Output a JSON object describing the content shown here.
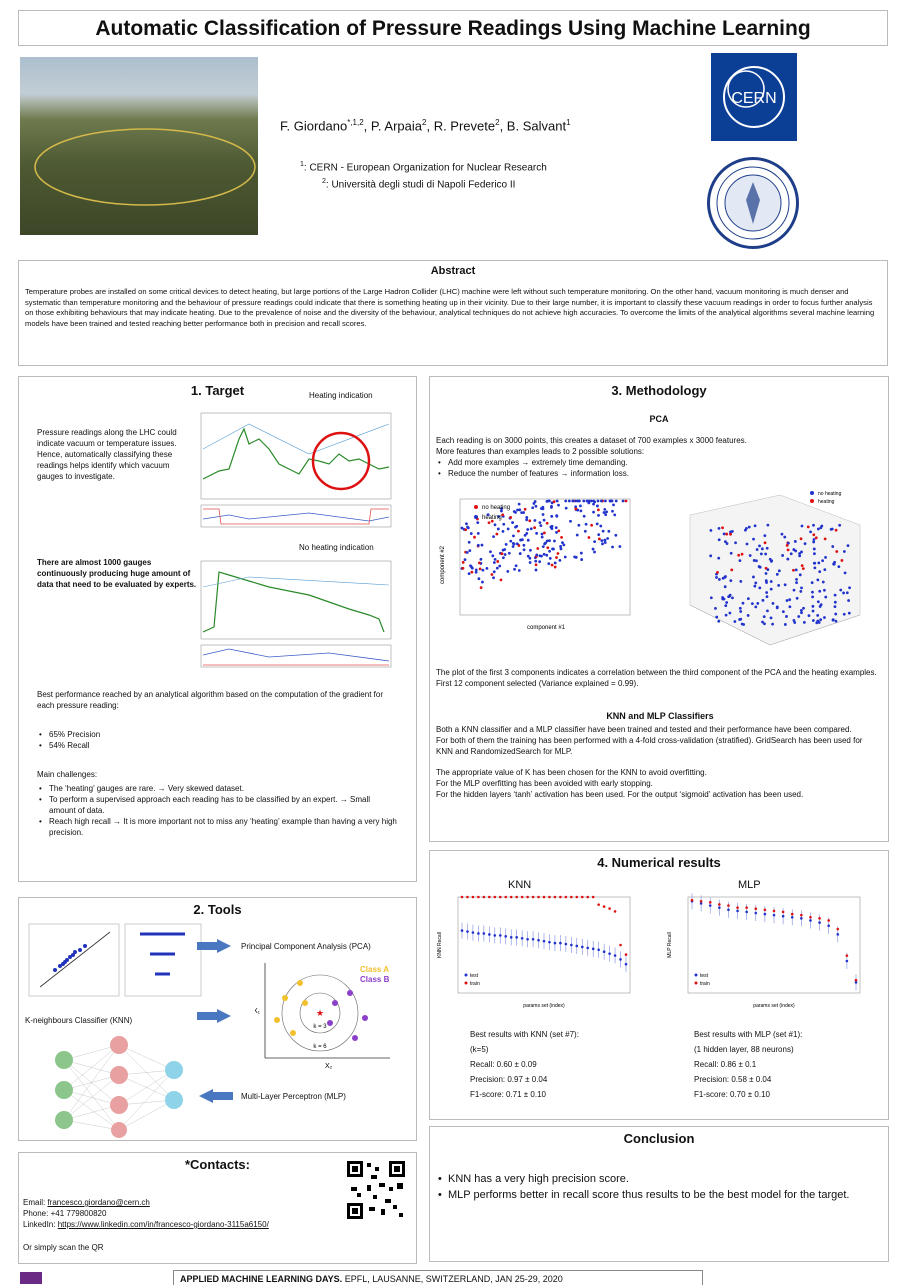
{
  "title": "Automatic Classification of Pressure Readings Using Machine Learning",
  "authors": [
    {
      "name": "F. Giordano",
      "mark": "*,1,2"
    },
    {
      "name": "P. Arpaia",
      "mark": "2"
    },
    {
      "name": "R. Prevete",
      "mark": "2"
    },
    {
      "name": "B. Salvant",
      "mark": "1"
    }
  ],
  "affiliations": [
    {
      "num": "1",
      "text": ": CERN - European Organization for Nuclear Research"
    },
    {
      "num": "2",
      "text": ": Università degli studi di Napoli Federico II"
    }
  ],
  "logo": {
    "cern": "CERN"
  },
  "abstract": {
    "title": "Abstract",
    "text": "Temperature probes are installed on some critical devices to detect heating, but large portions of the Large Hadron Collider (LHC) machine were left without such temperature monitoring. On the other hand, vacuum monitoring is much denser and systematic than temperature monitoring and the behaviour of pressure readings could indicate that there is something heating up in their vicinity. Due to their large number, it is important to classify these vacuum readings in order to focus further analysis on those exhibiting behaviours that may indicate heating. Due to the prevalence of noise and the diversity of the behaviour, analytical techniques do not achieve high accuracies. To overcome the limits of the analytical algorithms several machine learning models have been trained and tested reaching better performance both in precision and recall scores."
  },
  "target": {
    "title": "1. Target",
    "heating_label": "Heating indication",
    "no_heating_label": "No heating indication",
    "intro": "Pressure readings along the LHC could indicate vacuum or temperature issues. Hence, automatically classifying these readings helps identify which vacuum gauges to investigate.",
    "bold": "There are almost 1000 gauges continuously producing huge amount of data that need to be evaluated by experts.",
    "best": "Best performance reached by an analytical algorithm based on the computation of the gradient for each pressure reading:",
    "metrics": [
      "65% Precision",
      "54% Recall"
    ],
    "challenges_title": "Main challenges:",
    "challenges": [
      "The ‘heating’ gauges are rare.  → Very skewed dataset.",
      "To perform a supervised approach each reading has to be classified by an expert.  → Small amount of data.",
      "Reach high recall → It is more important not to miss any ‘heating’ example than having a very high precision."
    ]
  },
  "tools": {
    "title": "2. Tools",
    "pca": "Principal Component Analysis (PCA)",
    "knn": "K-neighbours Classifier (KNN)",
    "mlp": "Multi-Layer Perceptron (MLP)",
    "class_a": "Class A",
    "class_b": "Class B",
    "k3": "k = 3",
    "k6": "k = 6",
    "x1": "X₁",
    "x2": "X₂"
  },
  "contacts": {
    "title": "*Contacts:",
    "email_label": "Email: ",
    "email": "francesco.giordano@cern.ch",
    "phone": "Phone: +41 779800820",
    "linkedin_label": "LinkedIn: ",
    "linkedin": "https://www.linkedin.com/in/francesco-giordano-3115a6150/",
    "qr_note": "Or simply scan the QR"
  },
  "method": {
    "title": "3. Methodology",
    "pca_title": "PCA",
    "pca_lines": [
      "Each reading is on 3000 points, this creates a dataset of 700 examples x 3000 features.",
      "More features than examples leads to 2 possible solutions:"
    ],
    "pca_bullets": [
      "Add more examples → extremely time demanding.",
      "Reduce the number of features → information loss."
    ],
    "legend_no": "no heating",
    "legend_yes": "heating",
    "xlabel": "component #1",
    "ylabel": "component #2",
    "pca_note": "The plot of the first 3 components indicates a correlation between the third component of the PCA and the heating examples. First 12 component selected (Variance explained = 0.99).",
    "clf_title": "KNN and MLP Classifiers",
    "clf_text": [
      "Both a KNN classifier and a MLP classifier have been trained and tested and their performance have been compared.",
      "For both of them the training has been performed with a 4-fold cross-validation (stratified). GridSearch has been used for KNN and RandomizedSearch for MLP.",
      "",
      "The appropriate value of K has been chosen for the KNN to avoid overfitting.",
      "For the MLP overfitting has been avoided with early stopping.",
      "For the hidden layers ‘tanh’ activation has been used. For the output ‘sigmoid’ activation has been used."
    ]
  },
  "results": {
    "title": "4. Numerical results",
    "knn_title": "KNN",
    "mlp_title": "MLP",
    "knn_ylabel": "KNN Recall",
    "mlp_ylabel": "MLP Recall",
    "xlabel": "params set (index)",
    "legend_test": "test",
    "legend_train": "train",
    "knn_best": [
      "Best results with KNN (set #7):",
      "(k=5)",
      "Recall: 0.60 ± 0.09",
      "Precision: 0.97 ± 0.04",
      "F1-score: 0.71 ± 0.10"
    ],
    "mlp_best": [
      "Best results with MLP (set #1):",
      "(1 hidden layer, 88 neurons)",
      "Recall: 0.86 ± 0.1",
      "Precision: 0.58 ± 0.04",
      "F1-score: 0.70 ± 0.10"
    ]
  },
  "conclusion": {
    "title": "Conclusion",
    "items": [
      "KNN has a very high precision score.",
      "MLP performs better in recall score thus results to be the best model for the target."
    ]
  },
  "footer": {
    "bold": "APPLIED MACHINE LEARNING DAYS.",
    "rest": " EPFL, LAUSANNE, SWITZERLAND, JAN 25-29, 2020"
  },
  "chart_data": [
    {
      "type": "line",
      "x_label": "params set (index)",
      "y_label": "KNN Recall",
      "xlim": [
        0,
        31
      ],
      "ylim": [
        0.0,
        1.0
      ],
      "series": [
        {
          "name": "test",
          "values": [
            0.65,
            0.64,
            0.63,
            0.62,
            0.62,
            0.61,
            0.6,
            0.6,
            0.59,
            0.58,
            0.58,
            0.57,
            0.56,
            0.56,
            0.55,
            0.54,
            0.53,
            0.52,
            0.52,
            0.51,
            0.5,
            0.49,
            0.48,
            0.47,
            0.46,
            0.45,
            0.43,
            0.41,
            0.39,
            0.35,
            0.3
          ]
        },
        {
          "name": "train",
          "values": [
            1.0,
            1.0,
            1.0,
            1.0,
            1.0,
            1.0,
            1.0,
            1.0,
            1.0,
            1.0,
            1.0,
            1.0,
            1.0,
            1.0,
            1.0,
            1.0,
            1.0,
            1.0,
            1.0,
            1.0,
            1.0,
            1.0,
            1.0,
            1.0,
            1.0,
            0.92,
            0.9,
            0.88,
            0.85,
            0.5,
            0.4
          ]
        }
      ]
    },
    {
      "type": "line",
      "x_label": "params set (index)",
      "y_label": "MLP Recall",
      "xlim": [
        0,
        100
      ],
      "ylim": [
        0.0,
        0.9
      ],
      "series": [
        {
          "name": "test",
          "values": [
            0.86,
            0.84,
            0.82,
            0.8,
            0.78,
            0.77,
            0.76,
            0.75,
            0.74,
            0.73,
            0.72,
            0.71,
            0.7,
            0.68,
            0.66,
            0.63,
            0.55,
            0.3,
            0.1
          ]
        },
        {
          "name": "train",
          "values": [
            0.87,
            0.86,
            0.85,
            0.83,
            0.82,
            0.8,
            0.8,
            0.79,
            0.78,
            0.77,
            0.76,
            0.74,
            0.73,
            0.71,
            0.7,
            0.68,
            0.6,
            0.35,
            0.12
          ]
        }
      ]
    }
  ]
}
